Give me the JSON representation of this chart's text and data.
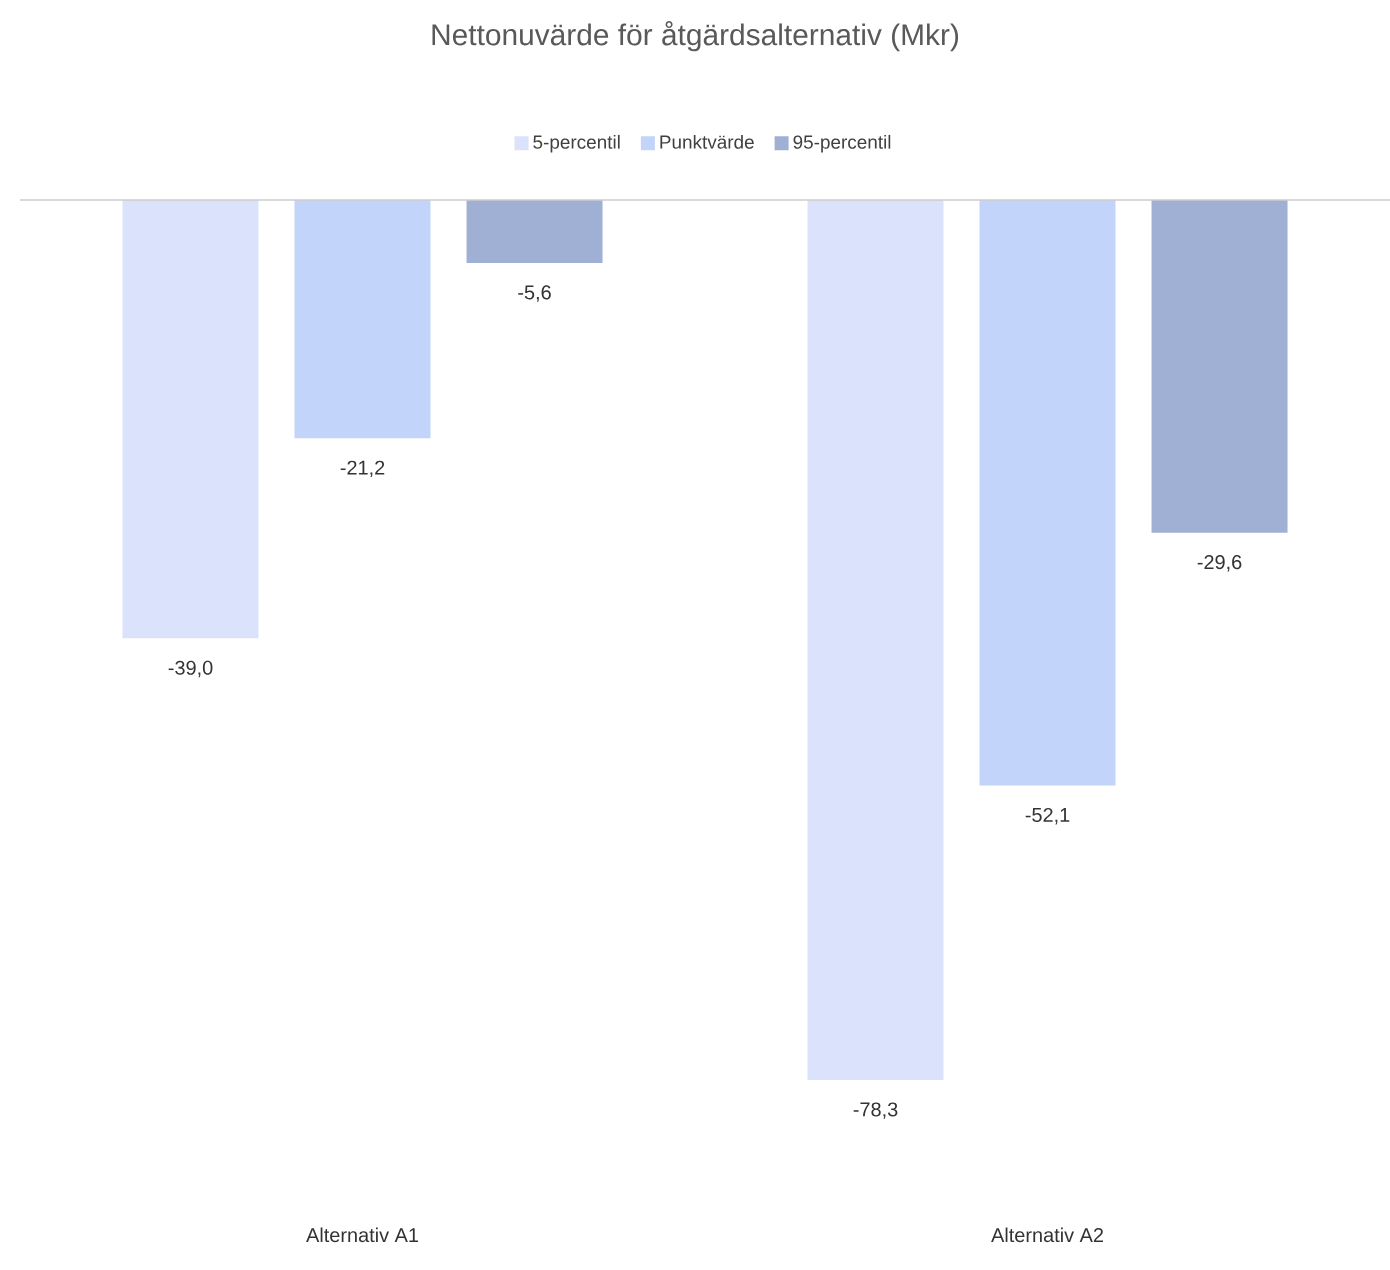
{
  "chart_data": {
    "type": "bar",
    "title": "Nettonuvärde för åtgärdsalternativ (Mkr)",
    "categories": [
      "Alternativ A1",
      "Alternativ A2"
    ],
    "series": [
      {
        "name": "5-percentil",
        "color": "#dae3fb",
        "values": [
          -39.0,
          -78.3
        ],
        "value_labels": [
          "-39,0",
          "-78,3"
        ]
      },
      {
        "name": "Punktvärde",
        "color": "#c3d4fb",
        "values": [
          -21.2,
          -52.1
        ],
        "value_labels": [
          "-21,2",
          "-52,1"
        ]
      },
      {
        "name": "95-percentil",
        "color": "#9fb0d4",
        "values": [
          -5.6,
          -29.6
        ],
        "value_labels": [
          "-5,6",
          "-29,6"
        ]
      }
    ],
    "legend": "top"
  }
}
